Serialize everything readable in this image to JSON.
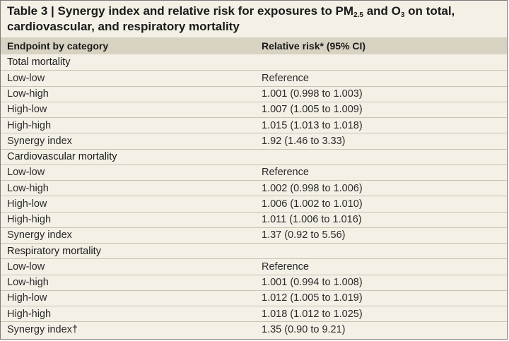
{
  "table": {
    "caption": {
      "part1": "Table 3 | Synergy index and relative risk for exposures to PM",
      "pm_subscript": "2.5",
      "part2": " and O",
      "o3_subscript": "3",
      "part3": " on total,",
      "line2": "cardiovascular, and respiratory mortality"
    },
    "headers": {
      "endpoint": "Endpoint by category",
      "relative_risk": "Relative risk* (95% CI)"
    },
    "groups": [
      {
        "category": "Total mortality",
        "rows": [
          {
            "label": "Low-low",
            "value": "Reference"
          },
          {
            "label": "Low-high",
            "value": "1.001 (0.998 to 1.003)"
          },
          {
            "label": "High-low",
            "value": "1.007 (1.005 to 1.009)"
          },
          {
            "label": "High-high",
            "value": "1.015 (1.013 to 1.018)"
          },
          {
            "label": "Synergy index",
            "value": "1.92 (1.46 to 3.33)"
          }
        ]
      },
      {
        "category": "Cardiovascular mortality",
        "rows": [
          {
            "label": "Low-low",
            "value": "Reference"
          },
          {
            "label": "Low-high",
            "value": "1.002 (0.998 to 1.006)"
          },
          {
            "label": "High-low",
            "value": "1.006 (1.002 to 1.010)"
          },
          {
            "label": "High-high",
            "value": "1.011 (1.006 to 1.016)"
          },
          {
            "label": "Synergy index",
            "value": "1.37 (0.92 to 5.56)"
          }
        ]
      },
      {
        "category": "Respiratory mortality",
        "rows": [
          {
            "label": "Low-low",
            "value": "Reference"
          },
          {
            "label": "Low-high",
            "value": "1.001 (0.994 to 1.008)"
          },
          {
            "label": "High-low",
            "value": "1.012 (1.005 to 1.019)"
          },
          {
            "label": "High-high",
            "value": "1.018 (1.012 to 1.025)"
          },
          {
            "label": "Synergy index†",
            "value": "1.35 (0.90 to 9.21)"
          }
        ]
      }
    ]
  }
}
